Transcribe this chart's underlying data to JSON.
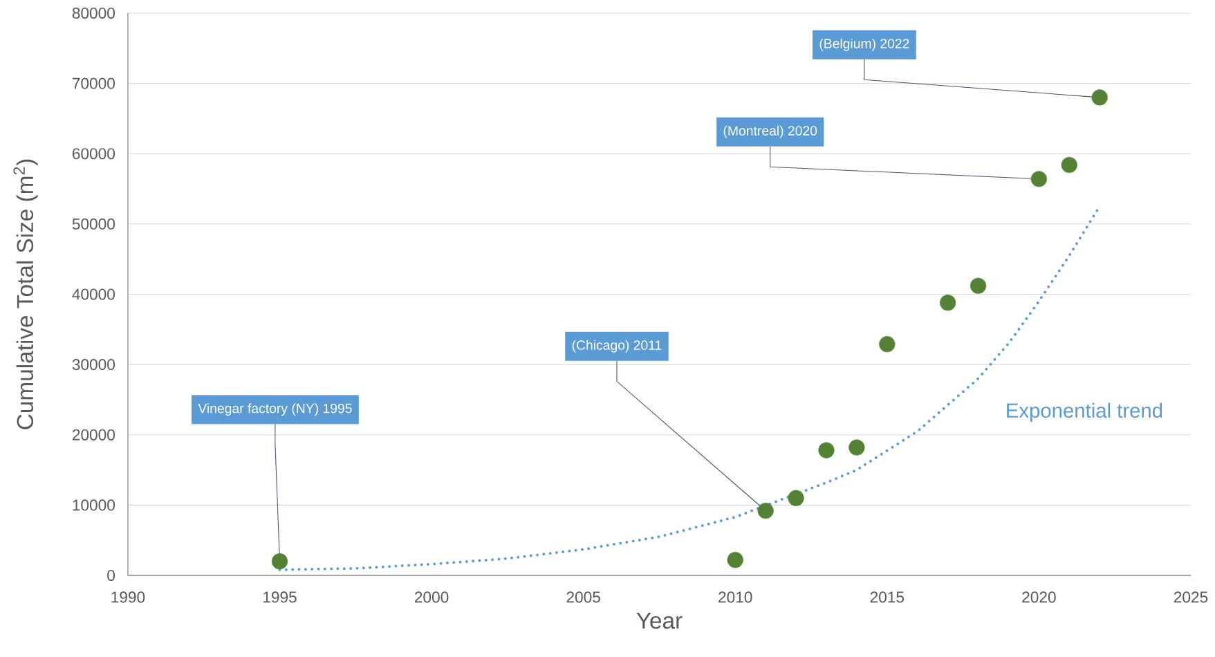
{
  "chart_data": {
    "type": "scatter",
    "xlabel": "Year",
    "ylabel": "Cumulative Total Size (m$^{2}$)",
    "xlim": [
      1990,
      2025
    ],
    "ylim": [
      0,
      80000
    ],
    "xticks": [
      1990,
      1995,
      2000,
      2005,
      2010,
      2015,
      2020,
      2025
    ],
    "yticks": [
      0,
      10000,
      20000,
      30000,
      40000,
      50000,
      60000,
      70000,
      80000
    ],
    "grid": "y",
    "series": [
      {
        "color": "#548235",
        "marker": "circle",
        "x": [
          1995,
          2010,
          2011,
          2012,
          2013,
          2014,
          2015,
          2017,
          2018,
          2020,
          2021,
          2022
        ],
        "values": [
          2000,
          2200,
          9200,
          11000,
          17800,
          18200,
          32900,
          38800,
          41200,
          56400,
          58400,
          68000
        ]
      },
      {
        "type": "line",
        "name": "Exponential trend",
        "color": "#5b9bd5",
        "line_style": "dotted",
        "marker": "none",
        "x": [
          1995,
          1997.5,
          2000,
          2002.5,
          2005,
          2007.5,
          2010,
          2013,
          2014,
          2016,
          2018,
          2019,
          2020,
          2021,
          2022
        ],
        "values": [
          800,
          1000,
          1600,
          2400,
          3700,
          5500,
          8300,
          13200,
          15000,
          20500,
          28000,
          33000,
          39000,
          45500,
          52500
        ]
      }
    ],
    "annotations": [
      {
        "text": "Vinegar factory (NY) 1995",
        "x": 1995,
        "y": 2000
      },
      {
        "text": "(Chicago) 2011",
        "x": 2011,
        "y": 9200
      },
      {
        "text": "(Montreal) 2020",
        "x": 2020,
        "y": 56400
      },
      {
        "text": "(Belgium) 2022",
        "x": 2022,
        "y": 68000
      }
    ]
  }
}
